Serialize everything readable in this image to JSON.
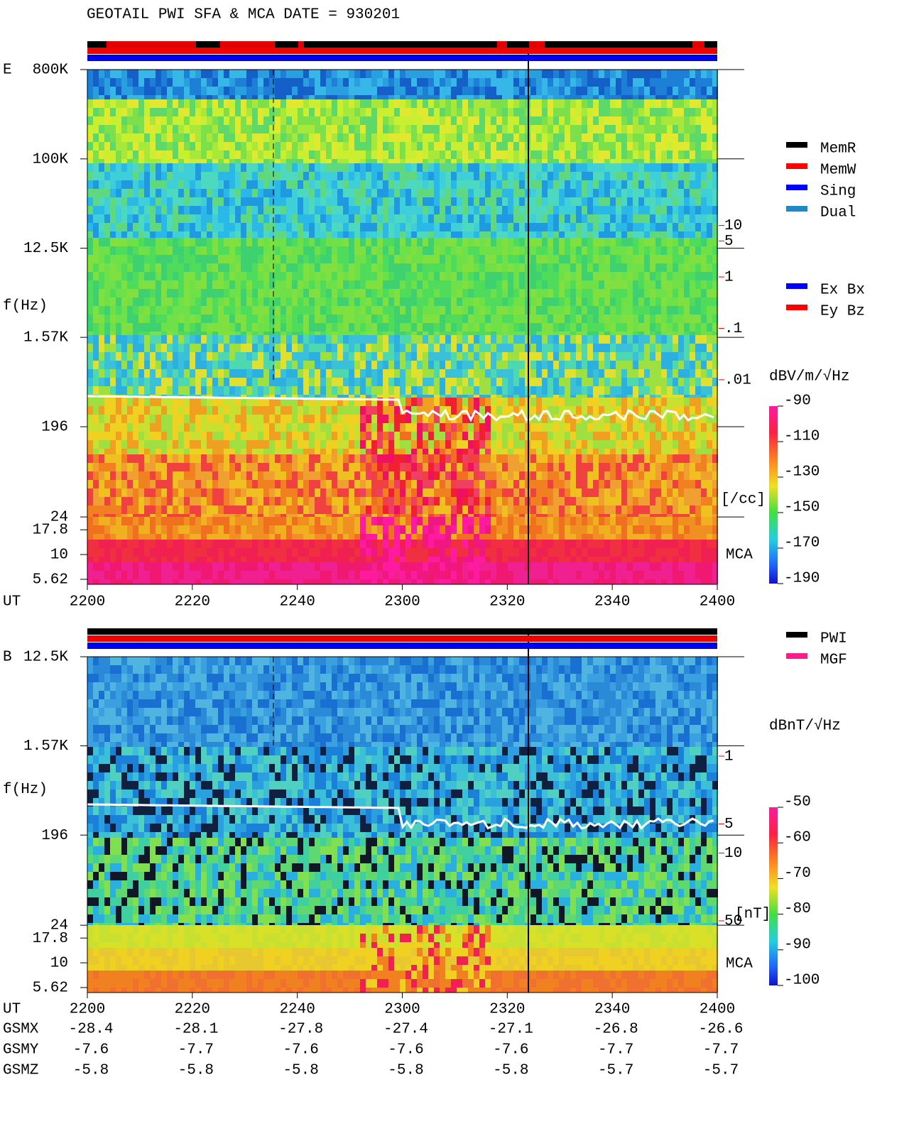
{
  "title": "GEOTAIL  PWI SFA & MCA   DATE = 930201",
  "chart_data": [
    {
      "type": "spectrogram",
      "panel_label": "E",
      "y_label": "f(Hz)",
      "x_label": "UT",
      "mca_label": "MCA",
      "yscale": "log",
      "ylim": [
        5,
        800000
      ],
      "yticks": [
        {
          "value": 800000,
          "label": "800K"
        },
        {
          "value": 100000,
          "label": "100K"
        },
        {
          "value": 12500,
          "label": "12.5K"
        },
        {
          "value": 1570,
          "label": "1.57K"
        },
        196,
        24,
        17.8,
        10,
        5.62
      ],
      "xticks": [
        "2200",
        "2220",
        "2240",
        "2300",
        "2320",
        "2340",
        "2400"
      ],
      "y2scale": "log",
      "y2lim": [
        0.0045,
        17.5
      ],
      "y2color": "#e00000",
      "y2ticks": [
        10,
        5,
        1,
        {
          "value": 0.1,
          "label": ".1"
        },
        {
          "value": 0.01,
          "label": ".01"
        }
      ],
      "y2_unit": "[/cc]",
      "colorbar": {
        "unit": "dBV/m/√Hz",
        "lim": [
          -190,
          -90
        ],
        "ticks": [
          -90,
          -110,
          -130,
          -150,
          -170,
          -190
        ]
      },
      "legend": [
        {
          "name": "MemR",
          "color": "#000000"
        },
        {
          "name": "MemW",
          "color": "#ff0000"
        },
        {
          "name": "Sing",
          "color": "#0000ff"
        },
        {
          "name": "Dual",
          "color": "#1e88c8"
        }
      ],
      "legend2": [
        {
          "name": "Ex Bx",
          "color": "#0000ff"
        },
        {
          "name": "Ey Bz",
          "color": "#ff0000"
        }
      ]
    },
    {
      "type": "spectrogram",
      "panel_label": "B",
      "y_label": "f(Hz)",
      "x_label": "UT",
      "mca_label": "MCA",
      "yscale": "log",
      "ylim": [
        5,
        12500
      ],
      "yticks": [
        {
          "value": 12500,
          "label": "12.5K"
        },
        {
          "value": 1570,
          "label": "1.57K"
        },
        196,
        24,
        17.8,
        10,
        5.62
      ],
      "xticks": [
        "2200",
        "2220",
        "2240",
        "2300",
        "2320",
        "2340",
        "2400"
      ],
      "y2scale": "log",
      "y2lim": [
        1,
        50
      ],
      "y2color": "#e00000",
      "y2ticks": [
        50,
        10,
        5,
        1
      ],
      "y2_unit": "[nT]",
      "colorbar": {
        "unit": "dBnT/√Hz",
        "lim": [
          -100,
          -50
        ],
        "ticks": [
          -50,
          -60,
          -70,
          -80,
          -90,
          -100
        ]
      },
      "legend": [
        {
          "name": "PWI",
          "color": "#000000"
        },
        {
          "name": "MGF",
          "color": "#ff1a8c"
        }
      ]
    }
  ],
  "ephemeris": [
    {
      "name": "GSMX",
      "values": [
        -28.4,
        -28.1,
        -27.8,
        -27.4,
        -27.1,
        -26.8,
        -26.6
      ]
    },
    {
      "name": "GSMY",
      "values": [
        -7.6,
        -7.7,
        -7.6,
        -7.6,
        -7.6,
        -7.7,
        -7.7
      ]
    },
    {
      "name": "GSMZ",
      "values": [
        -5.8,
        -5.8,
        -5.8,
        -5.8,
        -5.8,
        -5.7,
        -5.7
      ]
    }
  ]
}
